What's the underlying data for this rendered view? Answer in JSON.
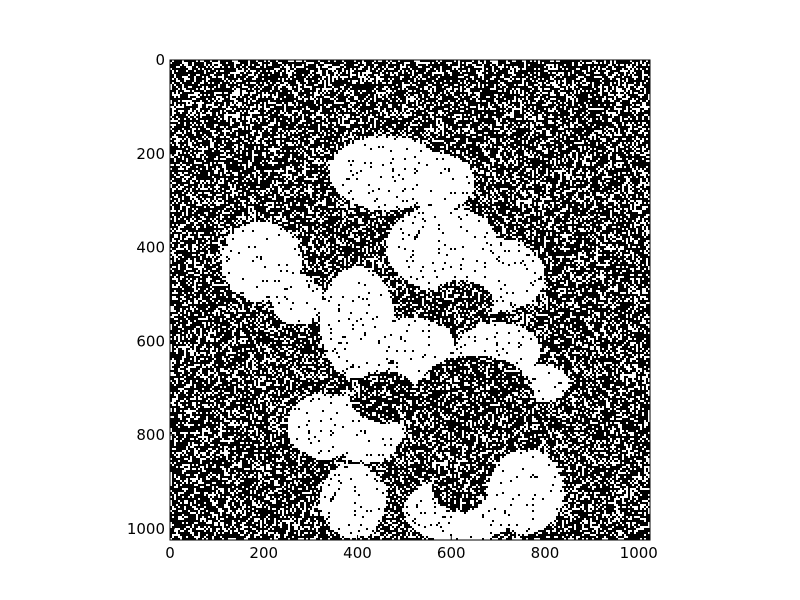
{
  "chart_data": {
    "type": "heatmap",
    "title": "",
    "xlabel": "",
    "ylabel": "",
    "xlim": [
      0,
      1024
    ],
    "ylim": [
      1024,
      0
    ],
    "xticks": [
      0,
      200,
      400,
      600,
      800,
      1000
    ],
    "yticks": [
      0,
      200,
      400,
      600,
      800,
      1000
    ],
    "colormap": [
      "#000000",
      "#ffffff"
    ],
    "values_description_note": "",
    "blobs": [
      {
        "cx": 460,
        "cy": 240,
        "rx": 120,
        "ry": 80
      },
      {
        "cx": 570,
        "cy": 260,
        "rx": 80,
        "ry": 60
      },
      {
        "cx": 195,
        "cy": 430,
        "rx": 85,
        "ry": 85
      },
      {
        "cx": 270,
        "cy": 510,
        "rx": 55,
        "ry": 55
      },
      {
        "cx": 580,
        "cy": 400,
        "rx": 120,
        "ry": 90
      },
      {
        "cx": 690,
        "cy": 460,
        "rx": 110,
        "ry": 80
      },
      {
        "cx": 400,
        "cy": 560,
        "rx": 80,
        "ry": 120
      },
      {
        "cx": 330,
        "cy": 780,
        "rx": 80,
        "ry": 70
      },
      {
        "cx": 420,
        "cy": 780,
        "rx": 80,
        "ry": 80
      },
      {
        "cx": 390,
        "cy": 940,
        "rx": 70,
        "ry": 80
      },
      {
        "cx": 620,
        "cy": 960,
        "rx": 120,
        "ry": 70
      },
      {
        "cx": 760,
        "cy": 920,
        "rx": 80,
        "ry": 90
      },
      {
        "cx": 520,
        "cy": 620,
        "rx": 90,
        "ry": 70
      },
      {
        "cx": 700,
        "cy": 620,
        "rx": 90,
        "ry": 60
      },
      {
        "cx": 790,
        "cy": 690,
        "rx": 60,
        "ry": 40
      }
    ],
    "holes": [
      {
        "cx": 460,
        "cy": 720,
        "rx": 75,
        "ry": 55
      },
      {
        "cx": 650,
        "cy": 720,
        "rx": 130,
        "ry": 90
      },
      {
        "cx": 620,
        "cy": 520,
        "rx": 70,
        "ry": 50
      },
      {
        "cx": 620,
        "cy": 910,
        "rx": 60,
        "ry": 55
      }
    ]
  }
}
